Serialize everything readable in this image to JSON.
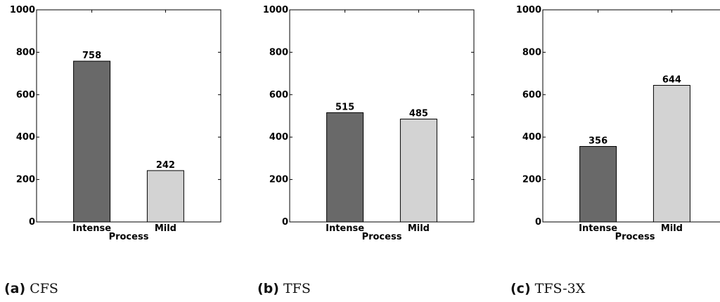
{
  "chart_data": [
    {
      "type": "bar",
      "categories": [
        "Intense",
        "Mild"
      ],
      "values": [
        758,
        242
      ],
      "xlabel": "Process",
      "ylabel": "",
      "ylim": [
        0,
        1000
      ],
      "yticks": [
        "0",
        "200",
        "400",
        "600",
        "800",
        "1000"
      ],
      "caption_tag": "(a)",
      "caption_name": "CFS"
    },
    {
      "type": "bar",
      "categories": [
        "Intense",
        "Mild"
      ],
      "values": [
        515,
        485
      ],
      "xlabel": "Process",
      "ylabel": "",
      "ylim": [
        0,
        1000
      ],
      "yticks": [
        "0",
        "200",
        "400",
        "600",
        "800",
        "1000"
      ],
      "caption_tag": "(b)",
      "caption_name": "TFS"
    },
    {
      "type": "bar",
      "categories": [
        "Intense",
        "Mild"
      ],
      "values": [
        356,
        644
      ],
      "xlabel": "Process",
      "ylabel": "",
      "ylim": [
        0,
        1000
      ],
      "yticks": [
        "0",
        "200",
        "400",
        "600",
        "800",
        "1000"
      ],
      "caption_tag": "(c)",
      "caption_name": "TFS-3X"
    }
  ],
  "colors": {
    "intense": "#696969",
    "mild": "#d3d3d3"
  }
}
